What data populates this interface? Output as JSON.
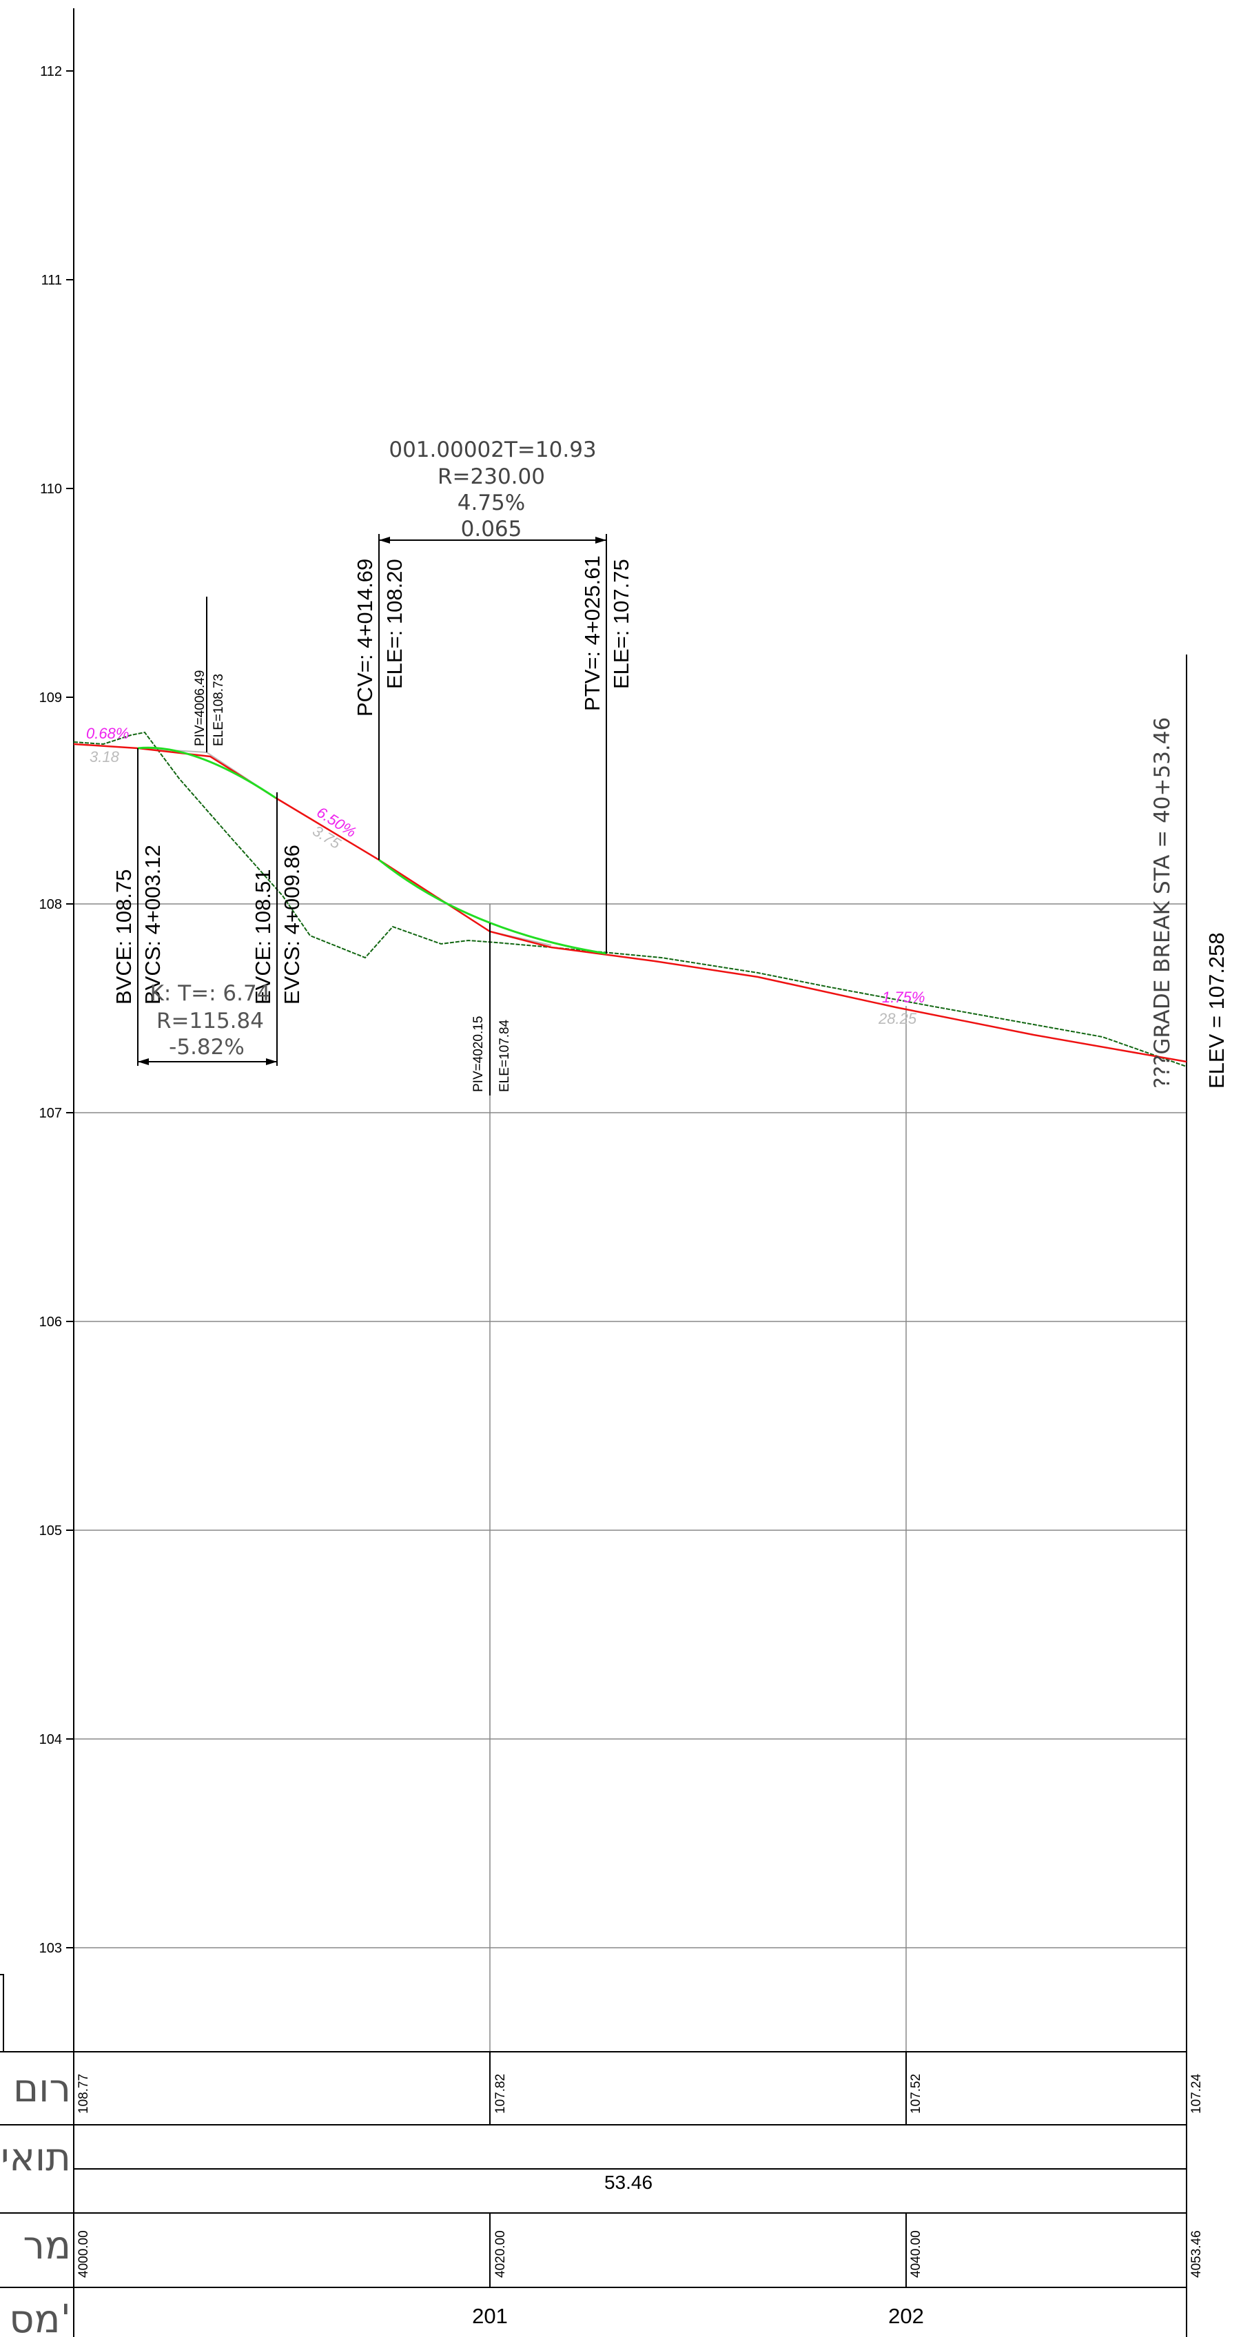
{
  "y_axis": {
    "tick_labels": [
      "112",
      "111",
      "110",
      "109",
      "108",
      "107",
      "106",
      "105",
      "104",
      "103"
    ],
    "values": [
      112,
      111,
      110,
      109,
      108,
      107,
      106,
      105,
      104,
      103
    ]
  },
  "vertical_curve_1": {
    "bvce": "BVCE: 108.75",
    "bvcs": "BVCS: 4+003.12",
    "evce": "EVCE: 108.51",
    "evcs": "EVCS: 4+009.86",
    "k_label": "K: T=:  6.74",
    "r_label": "R=115.84",
    "grade_change": "-5.82%",
    "piv_station": "PIV=4006.49",
    "piv_elevation": "ELE=108.73"
  },
  "vertical_curve_2": {
    "params": "001.00002T=10.93",
    "radius": "R=230.00",
    "grade_change": "4.75%",
    "e_value": "0.065",
    "pcv_station": "PCV=: 4+014.69",
    "pcv_elevation": "ELE=: 108.20",
    "ptv_station": "PTV=: 4+025.61",
    "ptv_elevation": "ELE=: 107.75",
    "piv_station": "PIV=4020.15",
    "piv_elevation": "ELE=107.84"
  },
  "grades": {
    "g1_percent": "0.68%",
    "g1_length": "3.18",
    "g2_percent": "6.50%",
    "g2_length": "3.75",
    "g3_percent": "1.75%",
    "g3_length": "28.25"
  },
  "grade_break": {
    "station": "???GRADE  BREAK  STA  =  40+53.46",
    "elevation": "ELEV =  107.258"
  },
  "table": {
    "row_labels": [
      "רום",
      "תואי",
      "מר",
      "מס'"
    ],
    "elevations": [
      "108.77",
      "107.82",
      "107.52",
      "107.24"
    ],
    "segment_length": "53.46",
    "stations": [
      "4000.00",
      "4020.00",
      "4040.00",
      "4053.46"
    ],
    "section_numbers": [
      "201",
      "202"
    ]
  },
  "colors": {
    "design_line": "#ee1111",
    "vertical_curve": "#22dd22",
    "existing_ground": "#116611",
    "grade_percent": "#ee22ee",
    "grade_length": "#bbbbbb",
    "grid": "#888888",
    "frame": "#000000"
  }
}
